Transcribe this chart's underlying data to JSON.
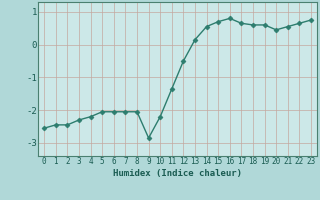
{
  "x": [
    0,
    1,
    2,
    3,
    4,
    5,
    6,
    7,
    8,
    9,
    10,
    11,
    12,
    13,
    14,
    15,
    16,
    17,
    18,
    19,
    20,
    21,
    22,
    23
  ],
  "y": [
    -2.55,
    -2.45,
    -2.45,
    -2.3,
    -2.2,
    -2.05,
    -2.05,
    -2.05,
    -2.05,
    -2.85,
    -2.2,
    -1.35,
    -0.5,
    0.15,
    0.55,
    0.7,
    0.8,
    0.65,
    0.6,
    0.6,
    0.45,
    0.55,
    0.65,
    0.75
  ],
  "xlabel": "Humidex (Indice chaleur)",
  "xlim": [
    -0.5,
    23.5
  ],
  "ylim": [
    -3.4,
    1.3
  ],
  "yticks": [
    -3,
    -2,
    -1,
    0,
    1
  ],
  "xticks": [
    0,
    1,
    2,
    3,
    4,
    5,
    6,
    7,
    8,
    9,
    10,
    11,
    12,
    13,
    14,
    15,
    16,
    17,
    18,
    19,
    20,
    21,
    22,
    23
  ],
  "line_color": "#2d7d6e",
  "marker_color": "#2d7d6e",
  "plot_bg_color": "#cce8e8",
  "grid_color": "#c4a8a0",
  "outer_bg_color": "#b0d8d8",
  "text_color": "#1a5c52",
  "spine_color": "#4a8070"
}
